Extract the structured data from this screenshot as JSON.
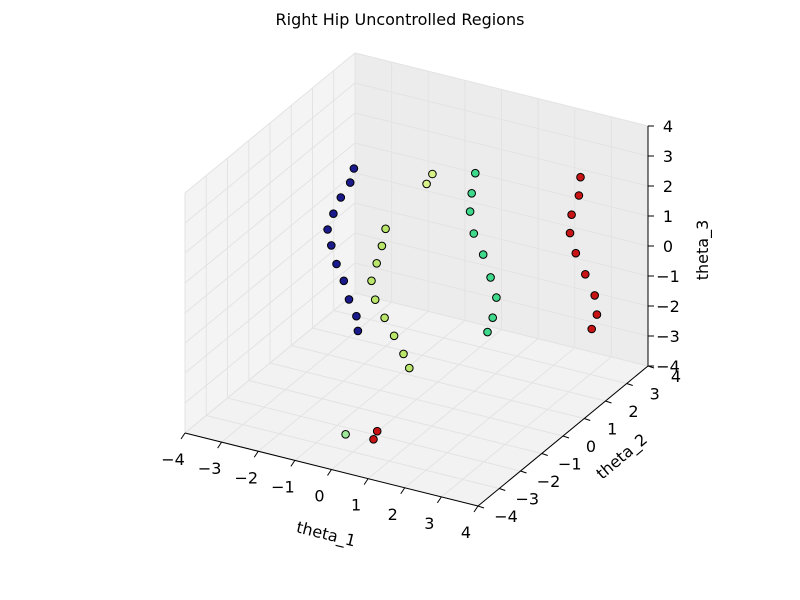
{
  "chart_data": {
    "type": "scatter",
    "projection": "3d",
    "title": "Right Hip Uncontrolled Regions",
    "xlabel": "theta_1",
    "ylabel": "theta_2",
    "zlabel": "theta_3",
    "xlim": [
      -4,
      4
    ],
    "ylim": [
      -4,
      4
    ],
    "zlim": [
      -4,
      4
    ],
    "xticks": [
      "−4",
      "−3",
      "−2",
      "−1",
      "0",
      "1",
      "2",
      "3",
      "4"
    ],
    "yticks": [
      "−4",
      "−3",
      "−2",
      "−1",
      "0",
      "1",
      "2",
      "3",
      "4"
    ],
    "zticks": [
      "−4",
      "−3",
      "−2",
      "−1",
      "0",
      "1",
      "2",
      "3",
      "4"
    ],
    "grid": true,
    "legend": "none",
    "series": [
      {
        "color": "#1a1a8c",
        "points": [
          [
            -2.0,
            0.5,
            2.8
          ],
          [
            -2.1,
            0.5,
            2.3
          ],
          [
            -2.3,
            0.4,
            1.8
          ],
          [
            -2.5,
            0.4,
            1.2
          ],
          [
            -2.6,
            0.3,
            0.7
          ],
          [
            -2.5,
            0.3,
            0.2
          ],
          [
            -2.3,
            0.2,
            -0.3
          ],
          [
            -2.1,
            0.2,
            -0.8
          ],
          [
            -1.9,
            0.1,
            -1.3
          ],
          [
            -1.7,
            0.1,
            -1.8
          ],
          [
            -1.6,
            0.0,
            -2.2
          ]
        ]
      },
      {
        "color": "#b9e66a",
        "points": [
          [
            0.2,
            -1.8,
            2.8
          ],
          [
            0.1,
            -1.8,
            2.2
          ],
          [
            -0.1,
            -1.7,
            1.5
          ],
          [
            -0.3,
            -1.6,
            0.8
          ],
          [
            -0.2,
            -1.6,
            0.2
          ],
          [
            0.0,
            -1.5,
            -0.4
          ],
          [
            0.2,
            -1.4,
            -1.0
          ],
          [
            0.4,
            -1.3,
            -1.6
          ],
          [
            0.5,
            -1.2,
            -2.1
          ]
        ]
      },
      {
        "color": "#3fd98c",
        "points": [
          [
            1.2,
            0.7,
            3.5
          ],
          [
            1.1,
            0.7,
            2.8
          ],
          [
            1.0,
            0.8,
            2.1
          ],
          [
            1.1,
            0.8,
            1.4
          ],
          [
            1.3,
            0.9,
            0.7
          ],
          [
            1.5,
            0.9,
            0.0
          ],
          [
            1.6,
            1.0,
            -0.7
          ],
          [
            1.5,
            1.0,
            -1.4
          ],
          [
            1.3,
            1.1,
            -2.0
          ]
        ]
      },
      {
        "color": "#c81414",
        "points": [
          [
            3.2,
            2.2,
            3.1
          ],
          [
            3.1,
            2.3,
            2.4
          ],
          [
            2.9,
            2.3,
            1.7
          ],
          [
            2.8,
            2.4,
            1.0
          ],
          [
            2.9,
            2.5,
            0.3
          ],
          [
            3.1,
            2.6,
            -0.4
          ],
          [
            3.3,
            2.7,
            -1.1
          ],
          [
            3.3,
            2.8,
            -1.8
          ],
          [
            3.1,
            2.9,
            -2.4
          ]
        ]
      },
      {
        "color": "#d8f28a",
        "points": [
          [
            -0.9,
            2.3,
            1.9
          ],
          [
            -1.0,
            2.2,
            1.6
          ]
        ]
      },
      {
        "color": "#9ee89a",
        "points": [
          [
            -0.6,
            -2.3,
            -4.0
          ]
        ]
      },
      {
        "color": "#c81414",
        "points": [
          [
            0.9,
            -3.4,
            -2.8
          ],
          [
            0.8,
            -3.4,
            -3.1
          ]
        ]
      }
    ]
  }
}
